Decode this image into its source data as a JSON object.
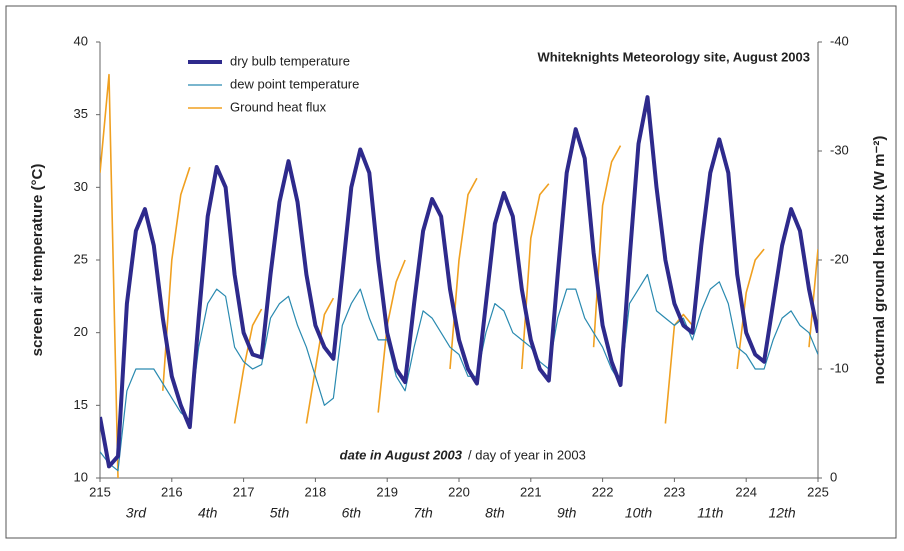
{
  "chart_data": {
    "type": "line",
    "title": "Whiteknights Meteorology site, August 2003",
    "y_label": "screen air temperature (°C)",
    "y2_label": "nocturnal ground heat flux (W m⁻²)",
    "x_label_bold": "date in August 2003",
    "x_label_rest": "/ day of year in 2003",
    "day_labels": [
      "3rd",
      "4th",
      "5th",
      "6th",
      "7th",
      "8th",
      "9th",
      "10th",
      "11th",
      "12th"
    ],
    "xlim": [
      215,
      225
    ],
    "xticks": [
      215,
      216,
      217,
      218,
      219,
      220,
      221,
      222,
      223,
      224,
      225
    ],
    "ylim": [
      10,
      40
    ],
    "yticks": [
      10,
      15,
      20,
      25,
      30,
      35,
      40
    ],
    "y2lim": [
      0,
      -40
    ],
    "y2ticks": [
      0,
      -10,
      -20,
      -30,
      -40
    ],
    "x": [
      215,
      215.125,
      215.25,
      215.375,
      215.5,
      215.625,
      215.75,
      215.875,
      216,
      216.125,
      216.25,
      216.375,
      216.5,
      216.625,
      216.75,
      216.875,
      217,
      217.125,
      217.25,
      217.375,
      217.5,
      217.625,
      217.75,
      217.875,
      218,
      218.125,
      218.25,
      218.375,
      218.5,
      218.625,
      218.75,
      218.875,
      219,
      219.125,
      219.25,
      219.375,
      219.5,
      219.625,
      219.75,
      219.875,
      220,
      220.125,
      220.25,
      220.375,
      220.5,
      220.625,
      220.75,
      220.875,
      221,
      221.125,
      221.25,
      221.375,
      221.5,
      221.625,
      221.75,
      221.875,
      222,
      222.125,
      222.25,
      222.375,
      222.5,
      222.625,
      222.75,
      222.875,
      223,
      223.125,
      223.25,
      223.375,
      223.5,
      223.625,
      223.75,
      223.875,
      224,
      224.125,
      224.25,
      224.375,
      224.5,
      224.625,
      224.75,
      224.875,
      225
    ],
    "series": [
      {
        "name": "dry bulb temperature",
        "color": "#2e2a8c",
        "values": [
          14.2,
          10.8,
          11.5,
          22,
          27,
          28.5,
          26,
          21,
          17,
          15,
          13.5,
          21,
          28,
          31.4,
          30,
          24,
          20,
          18.5,
          18.3,
          24,
          29,
          31.8,
          29,
          24,
          20.5,
          19,
          18.2,
          24,
          30,
          32.6,
          31,
          25,
          20,
          17.5,
          16.6,
          22,
          27,
          29.2,
          28,
          23,
          19.5,
          17.5,
          16.5,
          22,
          27.5,
          29.6,
          28,
          23,
          19.5,
          17.5,
          16.7,
          24,
          31,
          34,
          32,
          25.5,
          20.5,
          18,
          16.4,
          25,
          33,
          36.2,
          30,
          25,
          22,
          20.5,
          20,
          26,
          31,
          33.3,
          31,
          24,
          20,
          18.5,
          18,
          22,
          26,
          28.5,
          27,
          23,
          20
        ]
      },
      {
        "name": "dew point temperature",
        "color": "#2a8ab0",
        "values": [
          11.8,
          11,
          10.5,
          16,
          17.5,
          17.5,
          17.5,
          16.5,
          15.5,
          14.5,
          14,
          19,
          22,
          23,
          22.5,
          19,
          18,
          17.5,
          17.8,
          21,
          22,
          22.5,
          20.5,
          19,
          17,
          15,
          15.5,
          20.5,
          22,
          23,
          21,
          19.5,
          19.5,
          17,
          16,
          19,
          21.5,
          21,
          20,
          19,
          18.5,
          17,
          17,
          20,
          22,
          21.5,
          20,
          19.5,
          19,
          18,
          17.5,
          21,
          23,
          23,
          21,
          20,
          19,
          17.5,
          16.5,
          22,
          23,
          24,
          21.5,
          21,
          20.5,
          21,
          19.5,
          21.5,
          23,
          23.5,
          22,
          19,
          18.5,
          17.5,
          17.5,
          19.5,
          21,
          21.5,
          20.5,
          20,
          18.5
        ]
      },
      {
        "name": "Ground heat flux",
        "color": "#f0a020",
        "axis": "y2",
        "values": [
          -28,
          -37,
          0,
          null,
          null,
          null,
          null,
          -8,
          -20,
          -26,
          -28.5,
          null,
          null,
          null,
          null,
          -5,
          -10,
          -14,
          -15.5,
          null,
          null,
          null,
          null,
          -5,
          -10,
          -15,
          -16.5,
          null,
          null,
          null,
          null,
          -6,
          -14,
          -18,
          -20,
          null,
          null,
          null,
          null,
          -10,
          -20,
          -26,
          -27.5,
          null,
          null,
          null,
          null,
          -10,
          -22,
          -26,
          -27,
          null,
          null,
          null,
          null,
          -12,
          -25,
          -29,
          -30.5,
          null,
          null,
          null,
          null,
          -5,
          -14,
          -15,
          -14,
          null,
          null,
          null,
          null,
          -10,
          -17,
          -20,
          -21,
          null,
          null,
          null,
          null,
          -12,
          -21
        ]
      }
    ]
  }
}
